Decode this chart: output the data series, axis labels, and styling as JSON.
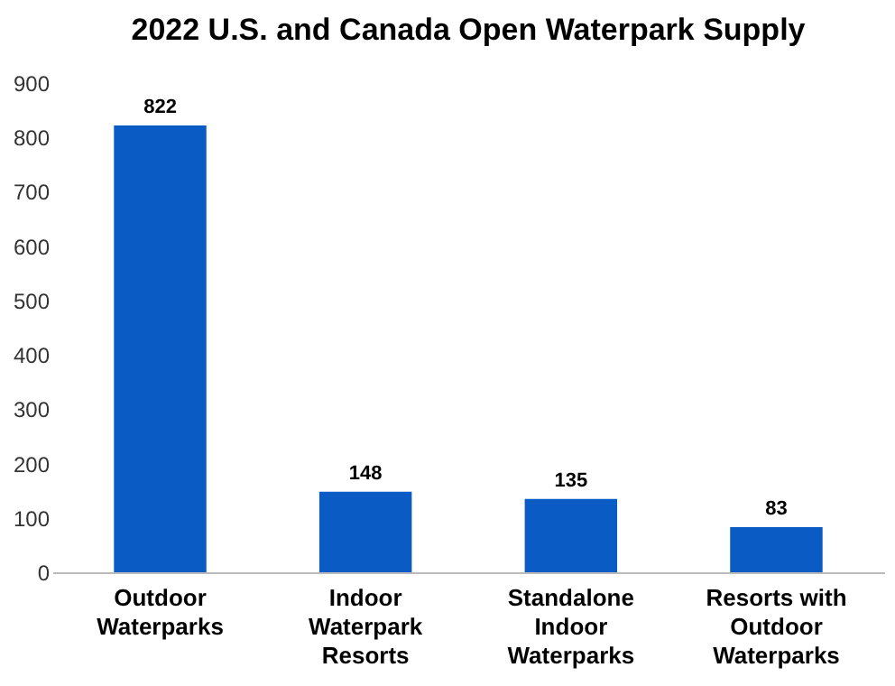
{
  "chart_data": {
    "type": "bar",
    "title": "2022 U.S. and Canada Open Waterpark Supply",
    "categories": [
      "Outdoor Waterparks",
      "Indoor Waterpark Resorts",
      "Standalone Indoor Waterparks",
      "Resorts with Outdoor Waterparks"
    ],
    "values": [
      822,
      148,
      135,
      83
    ],
    "color": "#0a5cc4",
    "data_labels": true,
    "ylim": [
      0,
      900
    ],
    "yticks": [
      0,
      100,
      200,
      300,
      400,
      500,
      600,
      700,
      800,
      900
    ],
    "grid": false
  }
}
